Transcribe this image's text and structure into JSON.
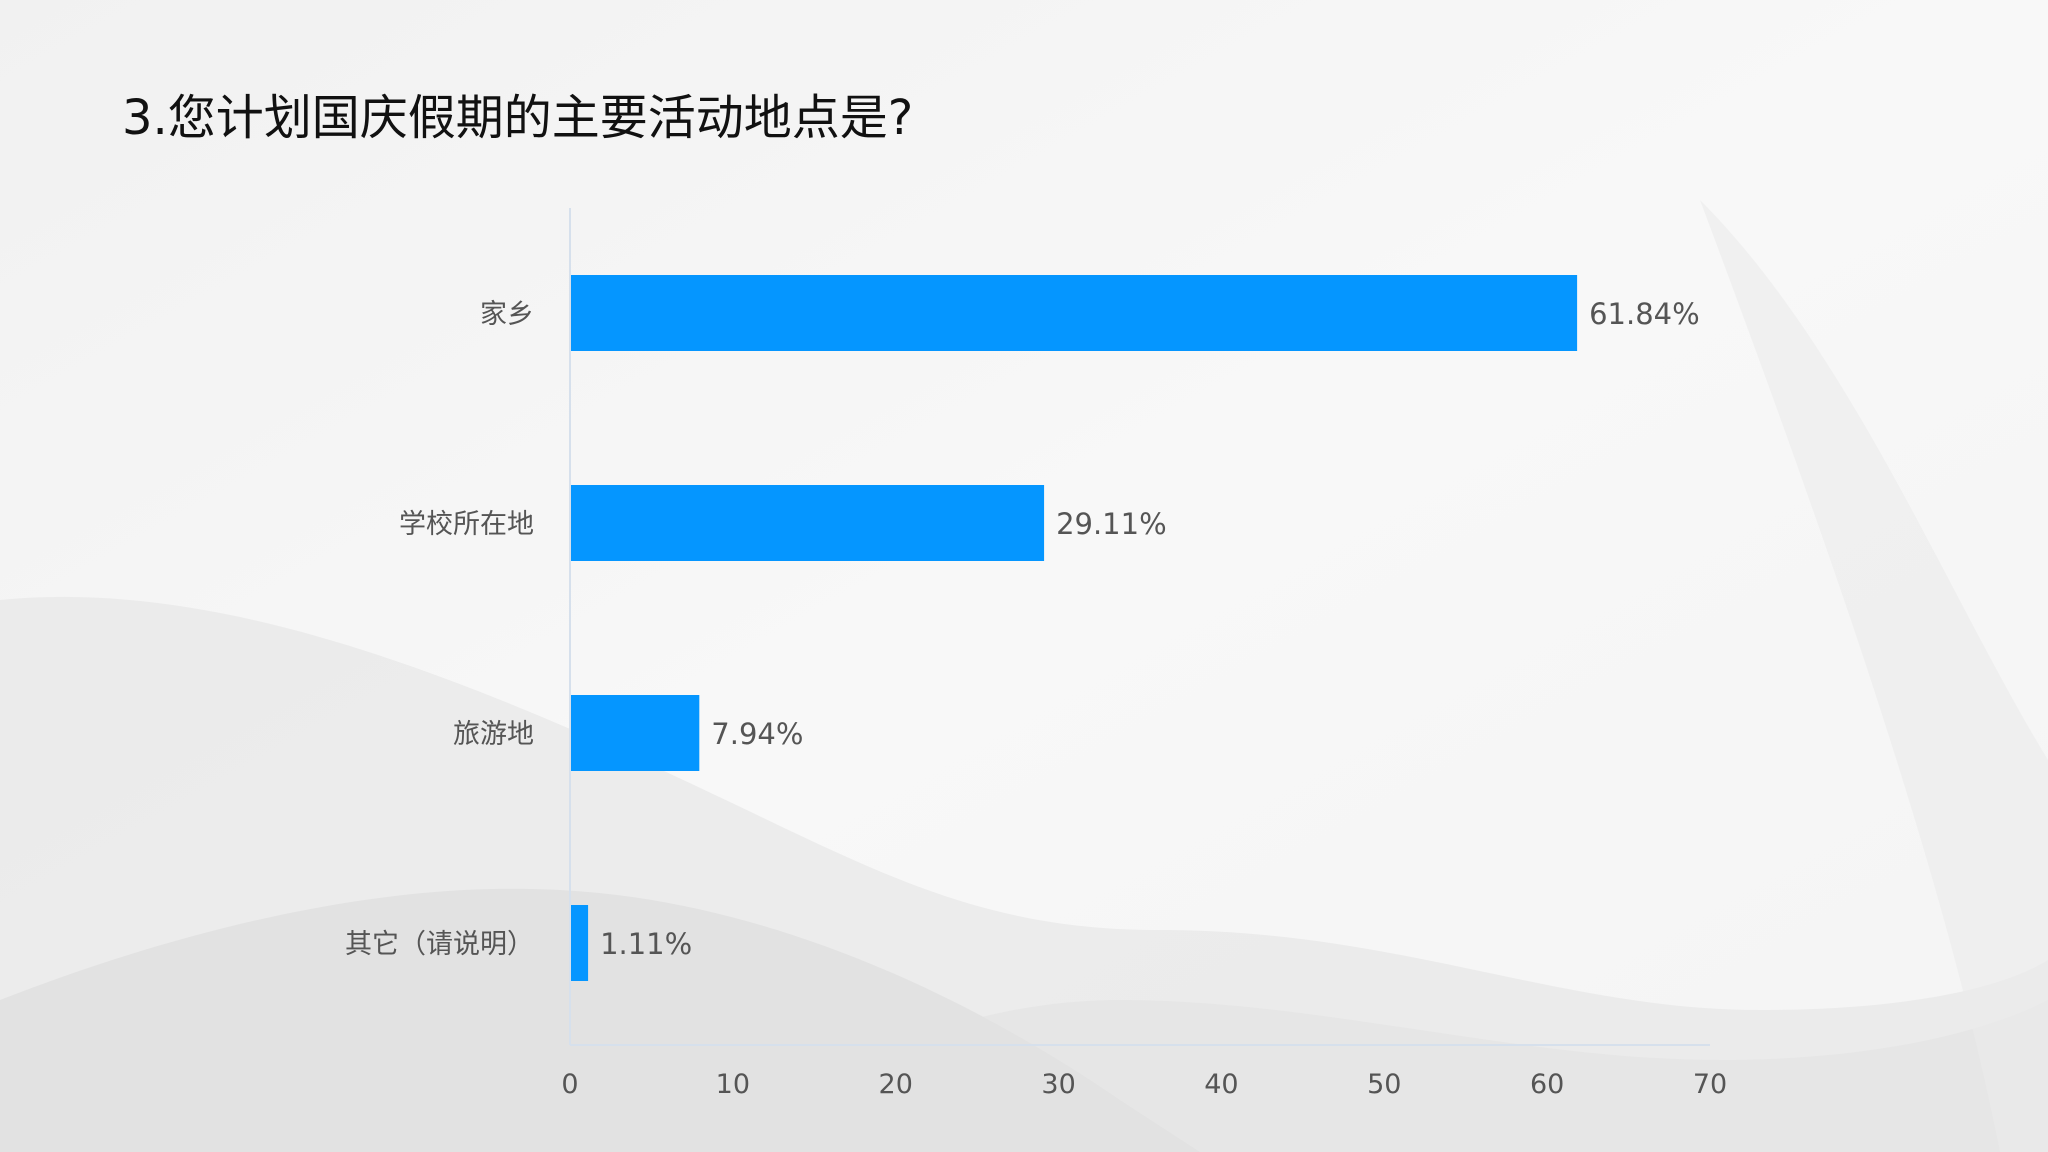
{
  "title": "3.您计划国庆假期的主要活动地点是?",
  "colors": {
    "bar": "#0596ff",
    "axis": "#d6e0ec",
    "label": "#555555"
  },
  "chart_data": {
    "type": "bar",
    "orientation": "horizontal",
    "categories": [
      "家乡",
      "学校所在地",
      "旅游地",
      "其它（请说明）"
    ],
    "values": [
      61.84,
      29.11,
      7.94,
      1.11
    ],
    "value_labels": [
      "61.84%",
      "29.11%",
      "7.94%",
      "1.11%"
    ],
    "xlim": [
      0,
      70
    ],
    "x_ticks": [
      "0",
      "10",
      "20",
      "30",
      "40",
      "50",
      "60",
      "70"
    ],
    "grid": false,
    "legend": "none"
  }
}
